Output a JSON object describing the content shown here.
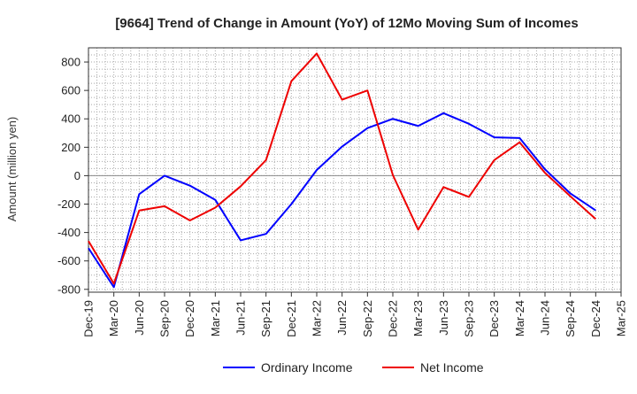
{
  "chart_data": {
    "type": "line",
    "title": "[9664]  Trend of Change in Amount (YoY) of 12Mo Moving Sum of Incomes",
    "ylabel": "Amount (million yen)",
    "xlabel": "",
    "ylim": [
      -820,
      900
    ],
    "yticks": [
      -800,
      -600,
      -400,
      -200,
      0,
      200,
      400,
      600,
      800
    ],
    "grid": true,
    "legend": "bottom-center",
    "x_tick_labels": [
      "Dec-19",
      "Mar-20",
      "Jun-20",
      "Sep-20",
      "Dec-20",
      "Mar-21",
      "Jun-21",
      "Sep-21",
      "Dec-21",
      "Mar-22",
      "Jun-22",
      "Sep-22",
      "Dec-22",
      "Mar-23",
      "Jun-23",
      "Sep-23",
      "Dec-23",
      "Mar-24",
      "Jun-24",
      "Sep-24",
      "Dec-24",
      "Mar-25"
    ],
    "series": [
      {
        "name": "Ordinary Income",
        "color": "#0000ff",
        "values": [
          -510,
          -785,
          -130,
          0,
          -70,
          -170,
          -455,
          -410,
          -200,
          40,
          205,
          335,
          400,
          350,
          440,
          365,
          270,
          265,
          45,
          -125,
          -245
        ]
      },
      {
        "name": "Net Income",
        "color": "#ee0000",
        "values": [
          -460,
          -760,
          -245,
          -215,
          -315,
          -225,
          -75,
          110,
          665,
          860,
          535,
          600,
          5,
          -380,
          -80,
          -150,
          110,
          235,
          20,
          -145,
          -305
        ]
      }
    ]
  }
}
